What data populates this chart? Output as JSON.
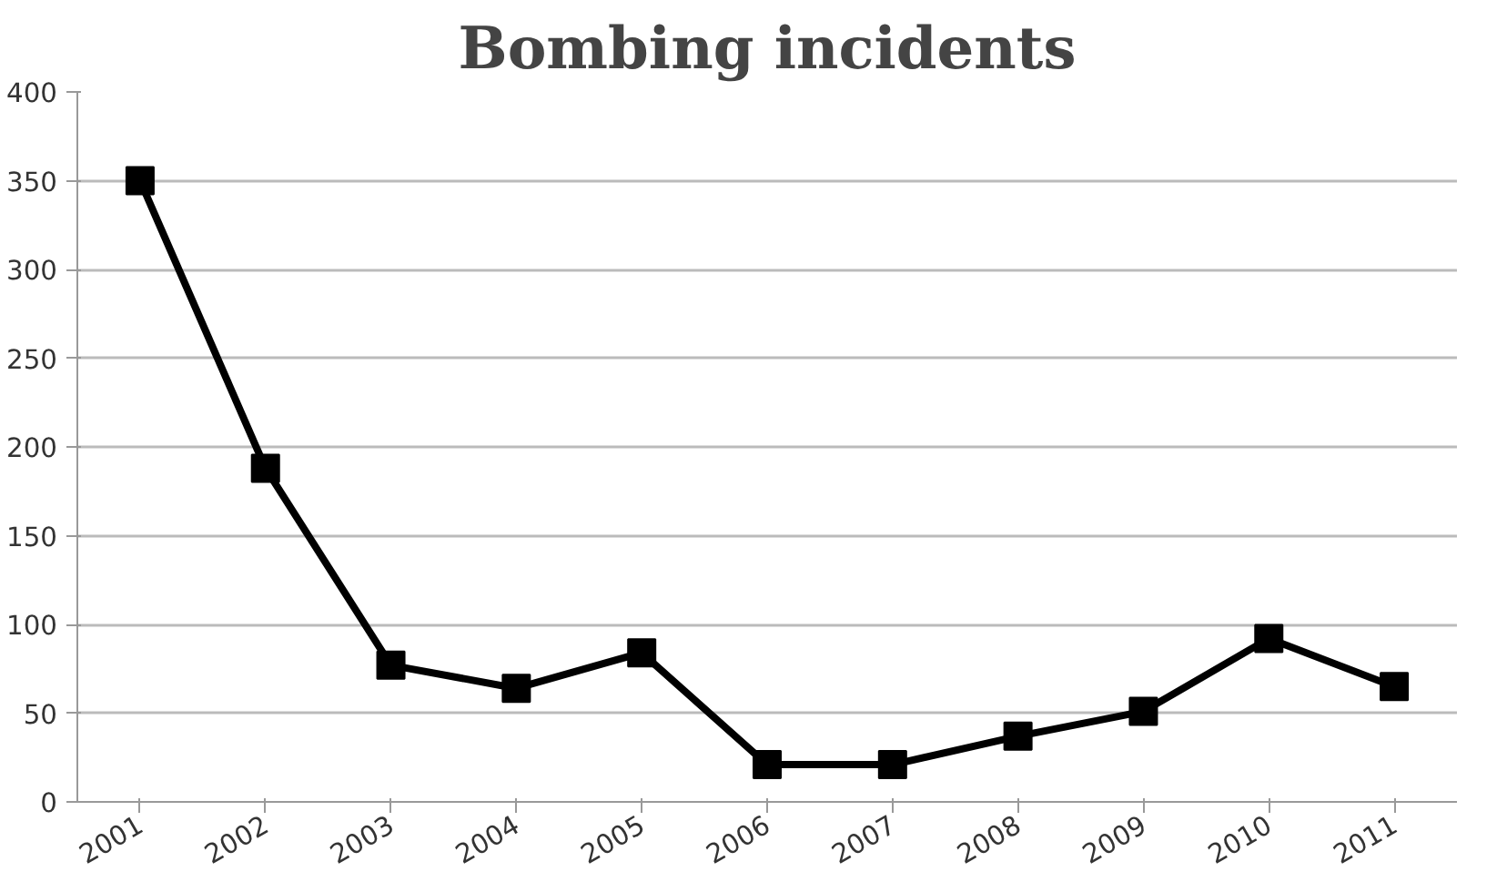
{
  "chart_data": {
    "type": "line",
    "title": "Bombing incidents",
    "categories": [
      "2001",
      "2002",
      "2003",
      "2004",
      "2005",
      "2006",
      "2007",
      "2008",
      "2009",
      "2010",
      "2011"
    ],
    "series": [
      {
        "color": "#000000",
        "values": [
          350,
          188,
          77,
          64,
          84,
          21,
          21,
          37,
          51,
          92,
          65
        ]
      }
    ],
    "ylim": [
      0,
      400
    ],
    "yticks": [
      0,
      50,
      100,
      150,
      200,
      250,
      300,
      350,
      400
    ],
    "grid": "y",
    "marker": "square",
    "line_style": "solid"
  }
}
